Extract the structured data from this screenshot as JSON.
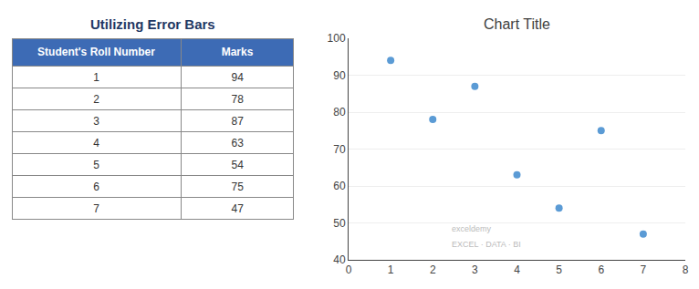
{
  "chart_data": [
    {
      "type": "table",
      "title": "Utilizing Error Bars",
      "series": [
        {
          "name": "Student's Roll Number",
          "values": [
            1,
            2,
            3,
            4,
            5,
            6,
            7
          ]
        },
        {
          "name": "Marks",
          "values": [
            94,
            78,
            87,
            63,
            54,
            75,
            47
          ]
        }
      ]
    },
    {
      "type": "scatter",
      "title": "Chart Title",
      "x": [
        1,
        2,
        3,
        4,
        5,
        6,
        7
      ],
      "values": [
        94,
        78,
        87,
        63,
        54,
        75,
        47
      ],
      "color": "#5B9BD5",
      "xlim": [
        0,
        8
      ],
      "ylim": [
        40,
        100
      ],
      "xticks": [
        0,
        1,
        2,
        3,
        4,
        5,
        6,
        7,
        8
      ],
      "yticks": [
        40,
        50,
        60,
        70,
        80,
        90,
        100
      ],
      "grid": "y",
      "annotations": [
        "exceldemy",
        "EXCEL · DATA · BI"
      ]
    }
  ]
}
